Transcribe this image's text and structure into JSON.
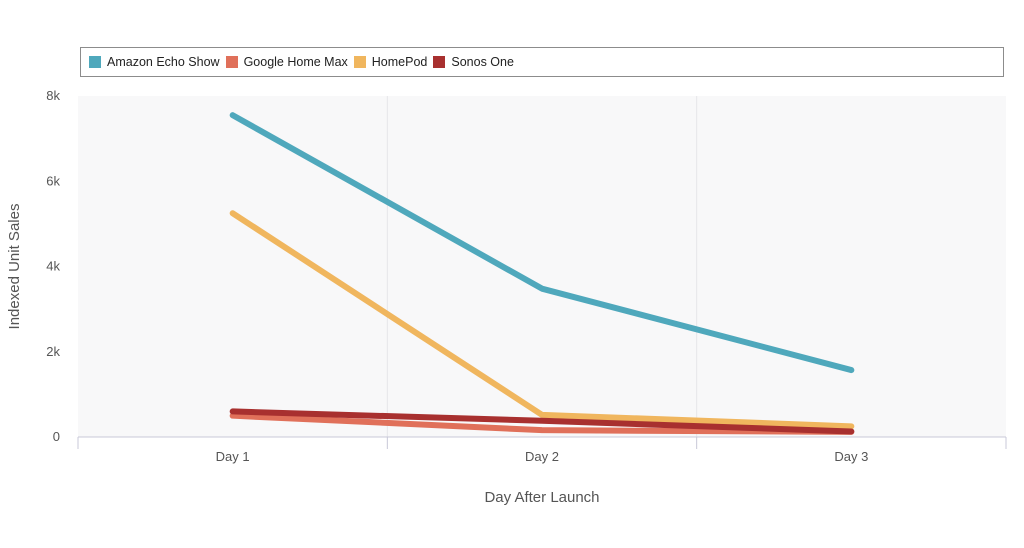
{
  "chart_data": {
    "type": "line",
    "title": "",
    "xlabel": "Day After Launch",
    "ylabel": "Indexed Unit Sales",
    "categories": [
      "Day 1",
      "Day 2",
      "Day 3"
    ],
    "ylim": [
      0,
      8000
    ],
    "yticks": [
      0,
      2000,
      4000,
      6000,
      8000
    ],
    "ytick_labels": [
      "0",
      "2k",
      "4k",
      "6k",
      "8k"
    ],
    "grid": true,
    "legend_position": "top",
    "series": [
      {
        "name": "Amazon Echo Show",
        "color": "#4fa8bc",
        "values": [
          7550,
          3480,
          1570
        ]
      },
      {
        "name": "Google Home Max",
        "color": "#e0705a",
        "values": [
          500,
          160,
          120
        ]
      },
      {
        "name": "HomePod",
        "color": "#f0b65e",
        "values": [
          5250,
          520,
          250
        ]
      },
      {
        "name": "Sonos One",
        "color": "#a8302f",
        "values": [
          600,
          380,
          130
        ]
      }
    ]
  }
}
